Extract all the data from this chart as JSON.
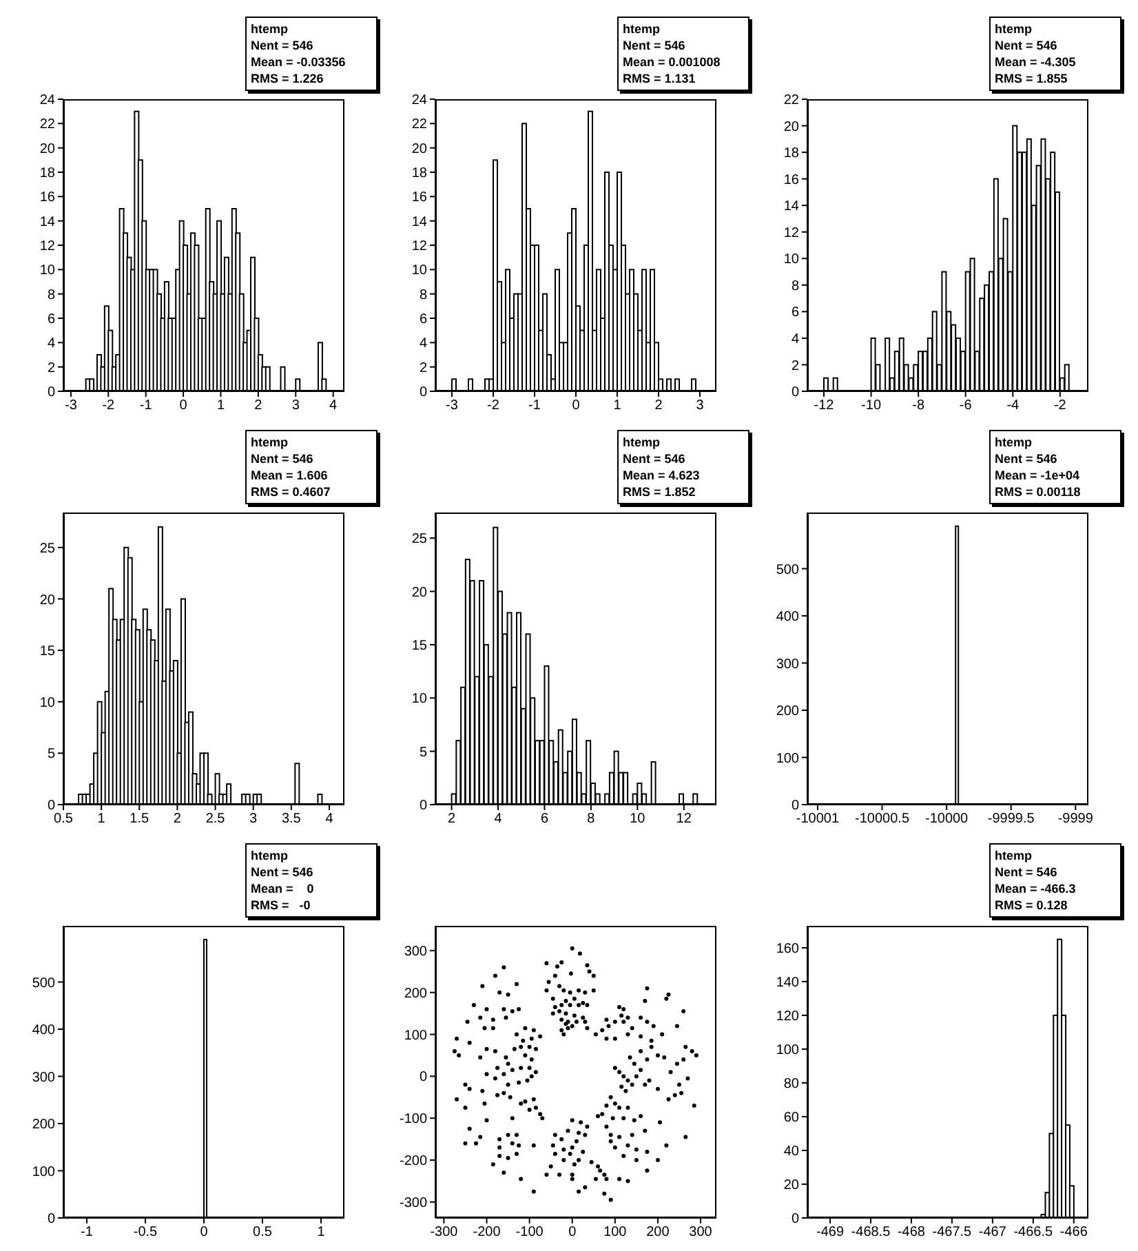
{
  "chart_data": [
    {
      "type": "histogram",
      "color": "#000000",
      "annotations": [
        "htemp",
        "Nent = 546",
        "Mean = -0.03356",
        "RMS = 1.226"
      ],
      "xlim": [
        -3.2,
        4.3
      ],
      "xticks": [
        -3,
        -2,
        -1,
        0,
        1,
        2,
        3,
        4
      ],
      "ylim": [
        0,
        24
      ],
      "yticks": [
        0,
        2,
        4,
        6,
        8,
        10,
        12,
        14,
        16,
        18,
        20,
        22,
        24
      ],
      "bins": [
        -3.2,
        -3.1,
        -3.0,
        -2.9,
        -2.8,
        -2.7,
        -2.6,
        -2.5,
        -2.4,
        -2.3,
        -2.2,
        -2.1,
        -2.0,
        -1.9,
        -1.8,
        -1.7,
        -1.6,
        -1.5,
        -1.4,
        -1.3,
        -1.2,
        -1.1,
        -1.0,
        -0.9,
        -0.8,
        -0.7,
        -0.6,
        -0.5,
        -0.4,
        -0.3,
        -0.2,
        -0.1,
        0,
        0.1,
        0.2,
        0.3,
        0.4,
        0.5,
        0.6,
        0.7,
        0.8,
        0.9,
        1.0,
        1.1,
        1.2,
        1.3,
        1.4,
        1.5,
        1.6,
        1.7,
        1.8,
        1.9,
        2.0,
        2.1,
        2.2,
        2.3,
        2.4,
        2.5,
        2.6,
        2.7,
        2.8,
        2.9,
        3.0,
        3.1,
        3.2,
        3.3,
        3.4,
        3.5,
        3.6,
        3.7,
        3.8,
        3.9,
        4.0,
        4.1,
        4.2,
        4.3
      ],
      "values": [
        0,
        0,
        0,
        0,
        0,
        0,
        1,
        1,
        0,
        3,
        2,
        7,
        5,
        2,
        3,
        15,
        13,
        11,
        10,
        23,
        19,
        14,
        10,
        10,
        10,
        8,
        6,
        9,
        6,
        6,
        10,
        14,
        12,
        8,
        13,
        12,
        6,
        6,
        15,
        9,
        8,
        14,
        8,
        11,
        8,
        15,
        13,
        8,
        4,
        5,
        11,
        6,
        3,
        2,
        2,
        0,
        0,
        0,
        2,
        0,
        0,
        0,
        1,
        0,
        0,
        0,
        0,
        0,
        4,
        1,
        0,
        0,
        0,
        0,
        0
      ]
    },
    {
      "type": "histogram",
      "color": "#000000",
      "annotations": [
        "htemp",
        "Nent = 546",
        "Mean = 0.001008",
        "RMS = 1.131"
      ],
      "xlim": [
        -3.4,
        3.4
      ],
      "xticks": [
        -3,
        -2,
        -1,
        0,
        1,
        2,
        3
      ],
      "ylim": [
        0,
        24
      ],
      "yticks": [
        0,
        2,
        4,
        6,
        8,
        10,
        12,
        14,
        16,
        18,
        20,
        22,
        24
      ],
      "bins": [
        -3.4,
        -3.3,
        -3.2,
        -3.1,
        -3.0,
        -2.9,
        -2.8,
        -2.7,
        -2.6,
        -2.5,
        -2.4,
        -2.3,
        -2.2,
        -2.1,
        -2.0,
        -1.9,
        -1.8,
        -1.7,
        -1.6,
        -1.5,
        -1.4,
        -1.3,
        -1.2,
        -1.1,
        -1.0,
        -0.9,
        -0.8,
        -0.7,
        -0.6,
        -0.5,
        -0.4,
        -0.3,
        -0.2,
        -0.1,
        0,
        0.1,
        0.2,
        0.3,
        0.4,
        0.5,
        0.6,
        0.7,
        0.8,
        0.9,
        1.0,
        1.1,
        1.2,
        1.3,
        1.4,
        1.5,
        1.6,
        1.7,
        1.8,
        1.9,
        2.0,
        2.1,
        2.2,
        2.3,
        2.4,
        2.5,
        2.6,
        2.7,
        2.8,
        2.9,
        3.0,
        3.1,
        3.2,
        3.3,
        3.4
      ],
      "values": [
        0,
        0,
        0,
        0,
        1,
        0,
        0,
        0,
        1,
        0,
        0,
        0,
        1,
        1,
        19,
        9,
        4,
        10,
        6,
        8,
        8,
        22,
        15,
        12,
        12,
        5,
        8,
        3,
        1,
        10,
        4,
        4,
        13,
        15,
        7,
        5,
        12,
        23,
        5,
        10,
        6,
        18,
        12,
        10,
        18,
        12,
        8,
        10,
        8,
        5,
        10,
        4,
        10,
        4,
        1,
        0,
        1,
        0,
        1,
        0,
        0,
        0,
        1,
        0,
        0,
        0,
        0,
        0
      ]
    },
    {
      "type": "histogram",
      "color": "#000000",
      "annotations": [
        "htemp",
        "Nent = 546",
        "Mean = -4.305",
        "RMS = 1.855"
      ],
      "xlim": [
        -12.7,
        -0.8
      ],
      "xticks": [
        -12,
        -10,
        -8,
        -6,
        -4,
        -2
      ],
      "ylim": [
        0,
        22
      ],
      "yticks": [
        0,
        2,
        4,
        6,
        8,
        10,
        12,
        14,
        16,
        18,
        20,
        22
      ],
      "bins": [
        -12.6,
        -12.4,
        -12.2,
        -12.0,
        -11.8,
        -11.6,
        -11.4,
        -11.2,
        -11.0,
        -10.8,
        -10.6,
        -10.4,
        -10.2,
        -10.0,
        -9.8,
        -9.6,
        -9.4,
        -9.2,
        -9.0,
        -8.8,
        -8.6,
        -8.4,
        -8.2,
        -8.0,
        -7.8,
        -7.6,
        -7.4,
        -7.2,
        -7.0,
        -6.8,
        -6.6,
        -6.4,
        -6.2,
        -6.0,
        -5.8,
        -5.6,
        -5.4,
        -5.2,
        -5.0,
        -4.8,
        -4.6,
        -4.4,
        -4.2,
        -4.0,
        -3.8,
        -3.6,
        -3.4,
        -3.2,
        -3.0,
        -2.8,
        -2.6,
        -2.4,
        -2.2,
        -2.0,
        -1.8,
        -1.6,
        -1.4,
        -1.2,
        -1.0,
        -0.8
      ],
      "values": [
        0,
        0,
        0,
        1,
        0,
        1,
        0,
        0,
        0,
        0,
        0,
        0,
        0,
        4,
        2,
        0,
        4,
        1,
        3,
        4,
        2,
        1,
        2,
        3,
        3,
        4,
        6,
        2,
        9,
        6,
        5,
        4,
        3,
        9,
        10,
        3,
        7,
        8,
        9,
        16,
        10,
        13,
        9,
        20,
        18,
        18,
        19,
        14,
        17,
        19,
        16,
        18,
        15,
        1,
        2,
        0,
        0,
        0,
        0
      ]
    },
    {
      "type": "histogram",
      "color": "#000000",
      "annotations": [
        "htemp",
        "Nent = 546",
        "Mean = 1.606",
        "RMS = 0.4607"
      ],
      "xlim": [
        0.5,
        4.2
      ],
      "xticks": [
        0.5,
        1,
        1.5,
        2,
        2.5,
        3,
        3.5,
        4
      ],
      "ylim": [
        0,
        28.4
      ],
      "yticks": [
        0,
        5,
        10,
        15,
        20,
        25
      ],
      "bins": [
        0.5,
        0.55,
        0.6,
        0.65,
        0.7,
        0.75,
        0.8,
        0.85,
        0.9,
        0.95,
        1.0,
        1.05,
        1.1,
        1.15,
        1.2,
        1.25,
        1.3,
        1.35,
        1.4,
        1.45,
        1.5,
        1.55,
        1.6,
        1.65,
        1.7,
        1.75,
        1.8,
        1.85,
        1.9,
        1.95,
        2.0,
        2.05,
        2.1,
        2.15,
        2.2,
        2.25,
        2.3,
        2.35,
        2.4,
        2.45,
        2.5,
        2.55,
        2.6,
        2.65,
        2.7,
        2.75,
        2.8,
        2.85,
        2.9,
        2.95,
        3.0,
        3.05,
        3.1,
        3.15,
        3.2,
        3.25,
        3.3,
        3.35,
        3.4,
        3.45,
        3.5,
        3.55,
        3.6,
        3.65,
        3.7,
        3.75,
        3.8,
        3.85,
        3.9,
        3.95,
        4.0,
        4.05,
        4.1,
        4.15,
        4.2
      ],
      "values": [
        0,
        0,
        0,
        0,
        1,
        1,
        1,
        2,
        5,
        10,
        7,
        11,
        21,
        18,
        16,
        18,
        25,
        24,
        18,
        17,
        10,
        19,
        17,
        16,
        14,
        27,
        12,
        19,
        13,
        14,
        5,
        20,
        8,
        9,
        3,
        2,
        5,
        5,
        1,
        0,
        3,
        1,
        1,
        2,
        0,
        0,
        0,
        1,
        1,
        0,
        1,
        1,
        0,
        0,
        0,
        0,
        0,
        0,
        0,
        0,
        0,
        4,
        0,
        0,
        0,
        0,
        0,
        1,
        0,
        0,
        0,
        0,
        0,
        0
      ]
    },
    {
      "type": "histogram",
      "color": "#000000",
      "annotations": [
        "htemp",
        "Nent = 546",
        "Mean = 4.623",
        "RMS = 1.852"
      ],
      "xlim": [
        1.3,
        13.4
      ],
      "xticks": [
        2,
        4,
        6,
        8,
        10,
        12
      ],
      "ylim": [
        0,
        27.4
      ],
      "yticks": [
        0,
        5,
        10,
        15,
        20,
        25
      ],
      "bins": [
        1.4,
        1.6,
        1.8,
        2.0,
        2.2,
        2.4,
        2.6,
        2.8,
        3.0,
        3.2,
        3.4,
        3.6,
        3.8,
        4.0,
        4.2,
        4.4,
        4.6,
        4.8,
        5.0,
        5.2,
        5.4,
        5.6,
        5.8,
        6.0,
        6.2,
        6.4,
        6.6,
        6.8,
        7.0,
        7.2,
        7.4,
        7.6,
        7.8,
        8.0,
        8.2,
        8.4,
        8.6,
        8.8,
        9.0,
        9.2,
        9.4,
        9.6,
        9.8,
        10.0,
        10.2,
        10.4,
        10.6,
        10.8,
        11.0,
        11.2,
        11.4,
        11.6,
        11.8,
        12.0,
        12.2,
        12.4,
        12.6,
        12.8,
        13.0,
        13.2,
        13.4
      ],
      "values": [
        0,
        0,
        0,
        1,
        6,
        11,
        23,
        21,
        12,
        21,
        15,
        12,
        26,
        20,
        16,
        18,
        11,
        18,
        9,
        16,
        10,
        6,
        6,
        13,
        6,
        4,
        7,
        3,
        5,
        8,
        3,
        1,
        6,
        2,
        1,
        0,
        1,
        3,
        5,
        3,
        3,
        0,
        1,
        2,
        1,
        0,
        4,
        0,
        0,
        0,
        0,
        0,
        1,
        0,
        0,
        1,
        0,
        0,
        0,
        0
      ]
    },
    {
      "type": "histogram",
      "color": "#000000",
      "annotations": [
        "htemp",
        "Nent = 546",
        "Mean = -1e+04",
        "RMS = 0.00118"
      ],
      "xlim": [
        -10001.08,
        -9998.9
      ],
      "xticks": [
        -10001,
        -10000.5,
        -10000,
        -9999.5,
        -9999
      ],
      "ylim": [
        0,
        619
      ],
      "yticks": [
        0,
        100,
        200,
        300,
        400,
        500
      ],
      "bins": [
        -9999.95,
        -9999.93,
        -9999.91,
        -9999.89
      ],
      "values": [
        0,
        590,
        0
      ]
    },
    {
      "type": "histogram",
      "color": "#000000",
      "annotations": [
        "htemp",
        "Nent = 546",
        "Mean =    0",
        "RMS =   -0"
      ],
      "xlim": [
        -1.2,
        1.2
      ],
      "xticks": [
        -1,
        -0.5,
        0,
        0.5,
        1
      ],
      "ylim": [
        0,
        619
      ],
      "yticks": [
        0,
        100,
        200,
        300,
        400,
        500
      ],
      "bins": [
        -0.024,
        0,
        0.024,
        0.048
      ],
      "values": [
        0,
        590,
        0
      ]
    },
    {
      "type": "scatter",
      "color": "#000000",
      "marker": "circle",
      "xlim": [
        -320,
        337
      ],
      "xticks": [
        -300,
        -200,
        -100,
        0,
        100,
        200,
        300
      ],
      "ylim": [
        -338,
        359
      ],
      "yticks": [
        -300,
        -200,
        -100,
        0,
        100,
        200,
        300
      ],
      "x": [
        0,
        18,
        -60,
        -35,
        -25,
        35,
        -40,
        -3,
        40,
        50,
        -55,
        -30,
        -20,
        -60,
        -5,
        15,
        30,
        50,
        -45,
        -15,
        5,
        25,
        -40,
        -25,
        -5,
        15,
        35,
        -45,
        -30,
        -15,
        5,
        25,
        -25,
        -10,
        10,
        30,
        -25,
        -20,
        -10,
        0,
        35,
        -15,
        -160,
        -180,
        -130,
        -210,
        -170,
        -150,
        -230,
        -200,
        -160,
        -140,
        -125,
        -215,
        -185,
        -155,
        -245,
        -205,
        -185,
        -110,
        -90,
        -130,
        -115,
        -95,
        -75,
        -100,
        -85,
        -120,
        -270,
        -275,
        -265,
        -240,
        -200,
        -180,
        -155,
        -150,
        -175,
        -140,
        -120,
        -100,
        -95,
        -110,
        -135,
        -160,
        -180,
        -150,
        -125,
        -105,
        -200,
        -215,
        -250,
        -240,
        -210,
        -175,
        -160,
        -145,
        -270,
        -250,
        -205,
        -95,
        -85,
        -110,
        -90,
        -85,
        -100,
        -75,
        -70,
        -120,
        -140,
        -200,
        -240,
        -150,
        -130,
        -170,
        -215,
        -225,
        -140,
        -125,
        -90,
        -170,
        -170,
        -150,
        -130,
        -185,
        -160,
        -120,
        -90,
        -60,
        -250,
        0,
        20,
        35,
        -10,
        15,
        30,
        -40,
        -25,
        10,
        -45,
        -20,
        0,
        25,
        -40,
        -5,
        15,
        -20,
        5,
        -50,
        -30,
        60,
        65,
        75,
        80,
        55,
        0,
        0,
        30,
        15,
        75,
        90,
        45,
        90,
        100,
        80,
        110,
        130,
        70,
        95,
        120,
        145,
        160,
        60,
        80,
        90,
        110,
        140,
        170,
        205,
        90,
        100,
        130,
        150,
        175,
        220,
        200,
        120,
        150,
        175,
        110,
        130,
        265,
        100,
        110,
        120,
        130,
        115,
        125,
        140,
        150,
        160,
        170,
        180,
        200,
        225,
        240,
        250,
        255,
        270,
        230,
        245,
        260,
        280,
        290,
        265,
        185,
        200,
        215,
        175,
        160,
        145,
        135,
        285,
        55,
        70,
        85,
        100,
        110,
        120,
        130,
        80,
        115,
        140,
        160,
        175,
        190,
        210,
        175,
        170,
        225,
        220,
        260,
        160,
        185,
        130,
        100,
        80,
        245,
        120
      ],
      "values": [
        305,
        293,
        270,
        262,
        272,
        265,
        240,
        245,
        250,
        240,
        225,
        215,
        205,
        205,
        200,
        205,
        200,
        205,
        185,
        180,
        185,
        175,
        165,
        170,
        170,
        170,
        170,
        150,
        155,
        150,
        145,
        140,
        135,
        130,
        130,
        130,
        110,
        100,
        115,
        120,
        115,
        125,
        260,
        240,
        220,
        215,
        200,
        195,
        170,
        160,
        160,
        155,
        160,
        140,
        135,
        140,
        130,
        115,
        115,
        115,
        110,
        100,
        85,
        90,
        95,
        70,
        65,
        70,
        90,
        60,
        50,
        80,
        65,
        60,
        45,
        30,
        20,
        15,
        20,
        20,
        40,
        50,
        65,
        5,
        -5,
        -20,
        -15,
        -10,
        5,
        45,
        -20,
        -30,
        -35,
        -45,
        -40,
        -50,
        -55,
        -75,
        -65,
        0,
        10,
        -60,
        -55,
        -75,
        -80,
        -90,
        -100,
        -65,
        -100,
        -105,
        -125,
        -140,
        -140,
        -150,
        -145,
        -160,
        -160,
        -165,
        -165,
        -170,
        -190,
        -195,
        -185,
        -210,
        -230,
        -245,
        -275,
        -235,
        -160,
        -105,
        -110,
        -120,
        -130,
        -135,
        -140,
        -140,
        -150,
        -155,
        -165,
        -175,
        -170,
        -180,
        -185,
        -185,
        -200,
        -200,
        -210,
        -215,
        -235,
        -215,
        -225,
        -235,
        -245,
        -245,
        -245,
        -235,
        -265,
        -275,
        -280,
        -295,
        -205,
        -50,
        -65,
        -70,
        -75,
        -75,
        -90,
        -100,
        -100,
        -105,
        -95,
        -95,
        -120,
        -140,
        -145,
        -140,
        -130,
        -110,
        -155,
        -170,
        -165,
        -175,
        -180,
        -165,
        -200,
        -190,
        -200,
        -225,
        -245,
        -250,
        -145,
        20,
        10,
        0,
        -10,
        -25,
        -35,
        -20,
        0,
        15,
        -20,
        -10,
        -30,
        -55,
        -45,
        -20,
        -40,
        -5,
        10,
        30,
        40,
        60,
        50,
        70,
        70,
        50,
        45,
        40,
        60,
        30,
        45,
        -70,
        100,
        110,
        120,
        130,
        165,
        160,
        140,
        135,
        145,
        115,
        140,
        130,
        120,
        100,
        210,
        180,
        195,
        185,
        155,
        95,
        85,
        100,
        90,
        90,
        120,
        130
      ]
    },
    {
      "type": "histogram",
      "color": "#000000",
      "annotations": [
        "htemp",
        "Nent = 546",
        "Mean = -466.3",
        "RMS = 0.128"
      ],
      "xlim": [
        -469.28,
        -465.82
      ],
      "xticks": [
        -469,
        -468.5,
        -468,
        -467.5,
        -467,
        -466.5,
        -466
      ],
      "ylim": [
        0,
        173
      ],
      "yticks": [
        0,
        20,
        40,
        60,
        80,
        100,
        120,
        140,
        160
      ],
      "bins": [
        -466.4,
        -466.35,
        -466.3,
        -466.25,
        -466.2,
        -466.15,
        -466.1,
        -466.05,
        -466.0
      ],
      "values": [
        2,
        15,
        50,
        120,
        165,
        120,
        55,
        19
      ]
    }
  ]
}
